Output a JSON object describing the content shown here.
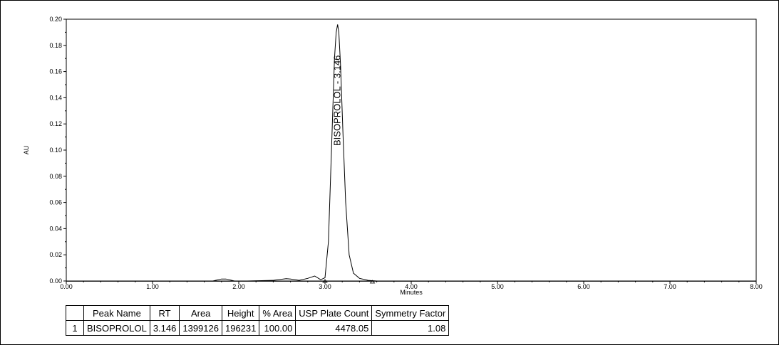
{
  "chart_data": {
    "type": "line",
    "xlabel": "Minutes",
    "ylabel": "AU",
    "xlim": [
      0,
      8
    ],
    "ylim": [
      0,
      0.2
    ],
    "xticks": [
      "0.00",
      "1.00",
      "2.00",
      "3.00",
      "4.00",
      "5.00",
      "6.00",
      "7.00",
      "8.00"
    ],
    "yticks": [
      "0.00",
      "0.02",
      "0.04",
      "0.06",
      "0.08",
      "0.10",
      "0.12",
      "0.14",
      "0.16",
      "0.18",
      "0.20"
    ],
    "grid": false,
    "series": [
      {
        "x": [
          0,
          1.7,
          1.8,
          1.85,
          1.95,
          2.1,
          2.4,
          2.55,
          2.6,
          2.7,
          2.8,
          2.88,
          2.95,
          3.0,
          3.04,
          3.08,
          3.11,
          3.13,
          3.146,
          3.16,
          3.18,
          3.21,
          3.24,
          3.28,
          3.33,
          3.4,
          3.5,
          3.6,
          4.0,
          5.0,
          6.0,
          7.0,
          8.0
        ],
        "y": [
          0,
          0.0,
          0.0015,
          0.0015,
          0.0,
          0.0,
          0.0005,
          0.0018,
          0.0015,
          0.0005,
          0.002,
          0.0038,
          0.001,
          0.0025,
          0.03,
          0.11,
          0.17,
          0.19,
          0.196,
          0.19,
          0.165,
          0.11,
          0.06,
          0.02,
          0.006,
          0.002,
          0.0005,
          0.0,
          0.0,
          0.0,
          0.0,
          0.0,
          0.0
        ]
      }
    ],
    "annotations": [
      {
        "text": "BISOPROLOL - 3.146",
        "x": 3.146,
        "y": 0.196
      }
    ]
  },
  "table": {
    "headers": [
      "",
      "Peak Name",
      "RT",
      "Area",
      "Height",
      "% Area",
      "USP Plate Count",
      "Symmetry Factor"
    ],
    "rows": [
      [
        "1",
        "BISOPROLOL",
        "3.146",
        "1399126",
        "196231",
        "100.00",
        "4478.05",
        "1.08"
      ]
    ]
  }
}
